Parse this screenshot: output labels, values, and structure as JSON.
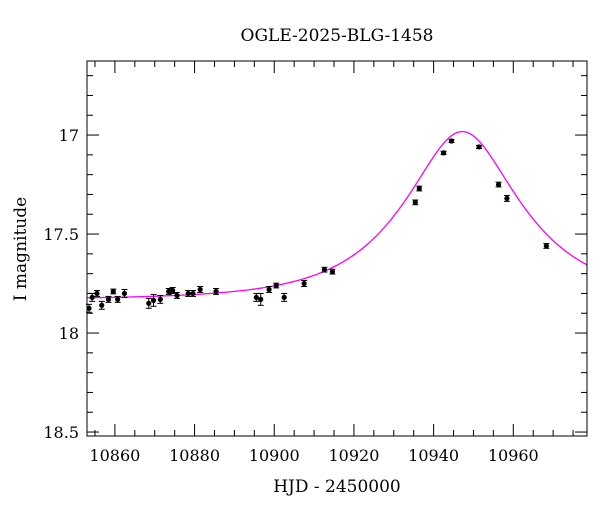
{
  "chart_data": {
    "type": "scatter",
    "title": "OGLE-2025-BLG-1458",
    "xlabel": "HJD - 2450000",
    "ylabel": "I magnitude",
    "xlim": [
      10853,
      10978.5
    ],
    "ylim": [
      18.52,
      16.626
    ],
    "y_inverted": true,
    "grid": false,
    "x_ticks": [
      "10860",
      "10880",
      "10900",
      "10920",
      "10940",
      "10960"
    ],
    "y_ticks": [
      "17",
      "17.5",
      "18",
      "18.5"
    ],
    "point_color": "#000000",
    "model_color": "#ff00ff",
    "series": [
      {
        "x": [
          10853.5,
          10854.3,
          10855.5,
          10856.7,
          10858.4,
          10859.6,
          10860.7,
          10862.4,
          10868.5,
          10869.7,
          10871.4,
          10873.5,
          10874.5,
          10875.6,
          10878.4,
          10879.6,
          10881.4,
          10885.4,
          10895.5,
          10896.6,
          10898.7,
          10900.5,
          10902.5,
          10907.5,
          10912.6,
          10914.6,
          10935.4,
          10936.4,
          10942.5,
          10944.5,
          10951.4,
          10956.3,
          10958.4,
          10968.3
        ],
        "y": [
          17.875,
          17.82,
          17.8,
          17.86,
          17.83,
          17.79,
          17.83,
          17.8,
          17.85,
          17.835,
          17.83,
          17.79,
          17.785,
          17.81,
          17.8,
          17.8,
          17.78,
          17.79,
          17.82,
          17.83,
          17.78,
          17.76,
          17.82,
          17.75,
          17.68,
          17.69,
          17.34,
          17.27,
          17.09,
          17.03,
          17.06,
          17.25,
          17.32,
          17.56
        ],
        "err": [
          0.02,
          0.02,
          0.015,
          0.02,
          0.015,
          0.012,
          0.015,
          0.02,
          0.025,
          0.03,
          0.02,
          0.015,
          0.015,
          0.015,
          0.015,
          0.015,
          0.015,
          0.015,
          0.02,
          0.03,
          0.015,
          0.012,
          0.02,
          0.015,
          0.012,
          0.012,
          0.012,
          0.012,
          0.008,
          0.008,
          0.008,
          0.012,
          0.015,
          0.012
        ]
      }
    ]
  }
}
